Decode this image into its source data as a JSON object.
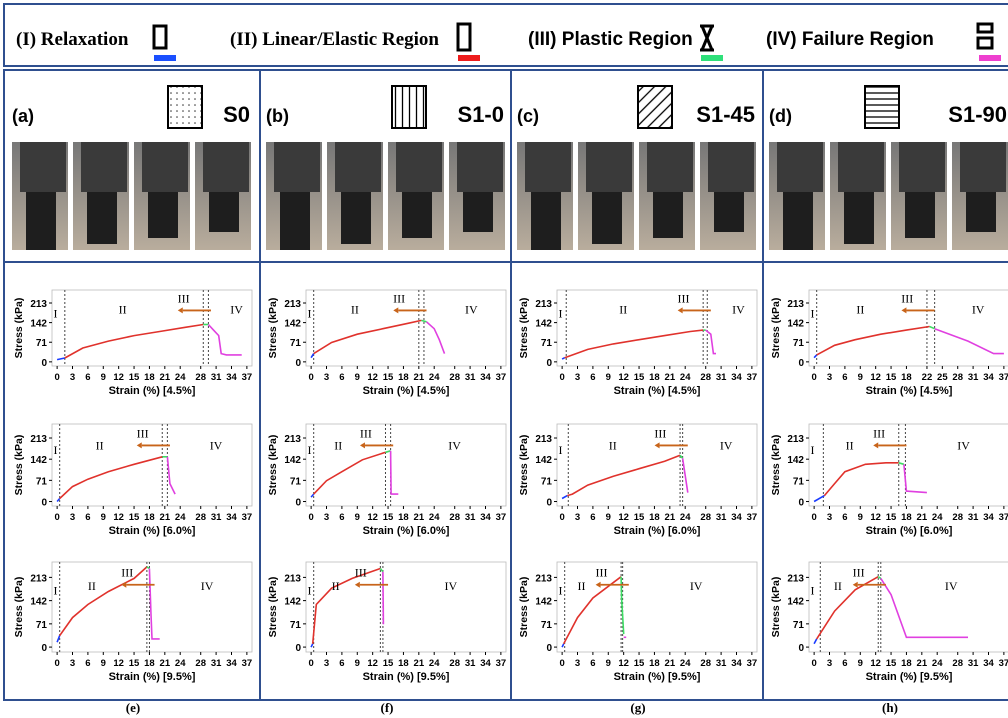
{
  "legend": [
    {
      "label": "(I) Relaxation",
      "color": "#1a4fff"
    },
    {
      "label": "(II) Linear/Elastic Region",
      "color": "#ee1c1c"
    },
    {
      "label": "(III) Plastic Region",
      "color": "#2ee07a"
    },
    {
      "label": "(IV) Failure Region",
      "color": "#ee3fcf"
    }
  ],
  "panels": [
    {
      "label": "(a)",
      "sample": "S0"
    },
    {
      "label": "(b)",
      "sample": "S1-0"
    },
    {
      "label": "(c)",
      "sample": "S1-45"
    },
    {
      "label": "(d)",
      "sample": "S1-90"
    }
  ],
  "captions": [
    "(e)",
    "(f)",
    "(g)",
    "(h)"
  ],
  "chart_data": [
    {
      "type": "line",
      "xlabel": "Strain (%) [4.5%]",
      "ylabel": "Stress (kPa)",
      "xlim": [
        -1,
        38
      ],
      "ylim": [
        -15,
        260
      ],
      "xticks": [
        0,
        3,
        6,
        9,
        12,
        15,
        18,
        21,
        24,
        28,
        31,
        34,
        37
      ],
      "yticks": [
        0,
        71,
        142,
        213
      ],
      "boundaries": [
        1.5,
        28.5,
        29.5
      ],
      "annotations": [
        "I",
        "II",
        "III",
        "IV"
      ],
      "series": [
        {
          "color": "#1a3cff",
          "x": [
            0,
            1.5
          ],
          "values": [
            8,
            14
          ]
        },
        {
          "color": "#e0322c",
          "x": [
            1.5,
            5,
            10,
            15,
            20,
            25,
            28.5
          ],
          "values": [
            14,
            50,
            75,
            95,
            110,
            125,
            135
          ]
        },
        {
          "color": "#3ddc64",
          "x": [
            28.5,
            29.5
          ],
          "values": [
            135,
            135
          ]
        },
        {
          "color": "#e040e0",
          "x": [
            29.5,
            30.5,
            31.5,
            32,
            33,
            36
          ],
          "values": [
            135,
            115,
            95,
            30,
            25,
            25
          ]
        }
      ]
    },
    {
      "type": "line",
      "xlabel": "Strain (%) [6.0%]",
      "ylabel": "Stress (kPa)",
      "xlim": [
        -1,
        38
      ],
      "ylim": [
        -15,
        260
      ],
      "xticks": [
        0,
        3,
        6,
        9,
        12,
        15,
        18,
        21,
        24,
        28,
        31,
        34,
        37
      ],
      "yticks": [
        0,
        71,
        142,
        213
      ],
      "boundaries": [
        0.5,
        20.5,
        21.5
      ],
      "annotations": [
        "I",
        "II",
        "III",
        "IV"
      ],
      "series": [
        {
          "color": "#1a3cff",
          "x": [
            0,
            0.5
          ],
          "values": [
            0,
            10
          ]
        },
        {
          "color": "#e0322c",
          "x": [
            0.5,
            3,
            6,
            10,
            15,
            20.5
          ],
          "values": [
            10,
            50,
            75,
            100,
            125,
            150
          ]
        },
        {
          "color": "#3ddc64",
          "x": [
            20.5,
            21.5
          ],
          "values": [
            150,
            150
          ]
        },
        {
          "color": "#e040e0",
          "x": [
            21.5,
            22,
            23
          ],
          "values": [
            150,
            60,
            25
          ]
        }
      ]
    },
    {
      "type": "line",
      "xlabel": "Strain (%) [9.5%]",
      "ylabel": "Stress (kPa)",
      "xlim": [
        -1,
        38
      ],
      "ylim": [
        -15,
        260
      ],
      "xticks": [
        0,
        3,
        6,
        9,
        12,
        15,
        18,
        21,
        24,
        28,
        31,
        34,
        37
      ],
      "yticks": [
        0,
        71,
        142,
        213
      ],
      "boundaries": [
        0.5,
        17.5,
        18
      ],
      "annotations": [
        "I",
        "II",
        "III",
        "IV"
      ],
      "series": [
        {
          "color": "#1a3cff",
          "x": [
            0,
            0.5
          ],
          "values": [
            15,
            35
          ]
        },
        {
          "color": "#e0322c",
          "x": [
            0.5,
            3,
            6,
            10,
            15,
            17.5
          ],
          "values": [
            35,
            90,
            130,
            170,
            210,
            245
          ]
        },
        {
          "color": "#3ddc64",
          "x": [
            17.5,
            18
          ],
          "values": [
            245,
            240
          ]
        },
        {
          "color": "#e040e0",
          "x": [
            18,
            18.3,
            18.5,
            20
          ],
          "values": [
            240,
            100,
            25,
            25
          ]
        }
      ]
    },
    {
      "type": "line",
      "xlabel": "Strain (%) [4.5%]",
      "ylabel": "Stress (kPa)",
      "xlim": [
        -1,
        38
      ],
      "ylim": [
        -15,
        260
      ],
      "xticks": [
        0,
        3,
        6,
        9,
        12,
        15,
        18,
        21,
        24,
        28,
        31,
        34,
        37
      ],
      "yticks": [
        0,
        71,
        142,
        213
      ],
      "boundaries": [
        0.5,
        21,
        22
      ],
      "annotations": [
        "I",
        "II",
        "III",
        "IV"
      ],
      "series": [
        {
          "color": "#1a3cff",
          "x": [
            0,
            0.5
          ],
          "values": [
            15,
            30
          ]
        },
        {
          "color": "#e0322c",
          "x": [
            0.5,
            4,
            9,
            14,
            19,
            21.5
          ],
          "values": [
            30,
            70,
            100,
            120,
            140,
            150
          ]
        },
        {
          "color": "#3ddc64",
          "x": [
            21.5,
            22.5
          ],
          "values": [
            150,
            145
          ]
        },
        {
          "color": "#e040e0",
          "x": [
            22.5,
            24,
            25,
            26
          ],
          "values": [
            145,
            120,
            80,
            30
          ]
        }
      ]
    },
    {
      "type": "line",
      "xlabel": "Strain (%) [6.0%]",
      "ylabel": "Stress (kPa)",
      "xlim": [
        -1,
        38
      ],
      "ylim": [
        -15,
        260
      ],
      "xticks": [
        0,
        3,
        6,
        9,
        12,
        15,
        18,
        21,
        24,
        28,
        31,
        34,
        37
      ],
      "yticks": [
        0,
        71,
        142,
        213
      ],
      "boundaries": [
        0.5,
        14.5,
        15.5
      ],
      "annotations": [
        "I",
        "II",
        "III",
        "IV"
      ],
      "series": [
        {
          "color": "#1a3cff",
          "x": [
            0,
            0.5
          ],
          "values": [
            15,
            25
          ]
        },
        {
          "color": "#e0322c",
          "x": [
            0.5,
            3,
            6,
            10,
            14.5
          ],
          "values": [
            25,
            70,
            100,
            140,
            165
          ]
        },
        {
          "color": "#3ddc64",
          "x": [
            14.5,
            15.5
          ],
          "values": [
            165,
            170
          ]
        },
        {
          "color": "#e040e0",
          "x": [
            15.5,
            15.6,
            17
          ],
          "values": [
            170,
            25,
            25
          ]
        }
      ]
    },
    {
      "type": "line",
      "xlabel": "Strain (%) [9.5%]",
      "ylabel": "Stress (kPa)",
      "xlim": [
        -1,
        38
      ],
      "ylim": [
        -15,
        260
      ],
      "xticks": [
        0,
        3,
        6,
        9,
        12,
        15,
        18,
        21,
        24,
        28,
        31,
        34,
        37
      ],
      "yticks": [
        0,
        71,
        142,
        213
      ],
      "boundaries": [
        0.5,
        13.5,
        14
      ],
      "annotations": [
        "I",
        "II",
        "III",
        "IV"
      ],
      "series": [
        {
          "color": "#1a3cff",
          "x": [
            0,
            0.3
          ],
          "values": [
            0,
            10
          ]
        },
        {
          "color": "#e0322c",
          "x": [
            0.3,
            1,
            4,
            8,
            13.5
          ],
          "values": [
            10,
            130,
            180,
            210,
            240
          ]
        },
        {
          "color": "#3ddc64",
          "x": [
            13.5,
            14
          ],
          "values": [
            240,
            230
          ]
        },
        {
          "color": "#e040e0",
          "x": [
            14,
            14.1
          ],
          "values": [
            230,
            70
          ]
        }
      ]
    },
    {
      "type": "line",
      "xlabel": "Strain (%) [4.5%]",
      "ylabel": "Stress (kPa)",
      "xlim": [
        -1,
        38
      ],
      "ylim": [
        -15,
        260
      ],
      "xticks": [
        0,
        3,
        6,
        9,
        12,
        15,
        18,
        21,
        24,
        28,
        31,
        34,
        37
      ],
      "yticks": [
        0,
        71,
        142,
        213
      ],
      "boundaries": [
        0.8,
        27.5,
        28.3
      ],
      "annotations": [
        "I",
        "II",
        "III",
        "IV"
      ],
      "series": [
        {
          "color": "#1a3cff",
          "x": [
            0,
            0.5
          ],
          "values": [
            10,
            15
          ]
        },
        {
          "color": "#e0322c",
          "x": [
            0.5,
            5,
            10,
            15,
            20,
            25,
            27.5
          ],
          "values": [
            15,
            45,
            65,
            80,
            95,
            110,
            115
          ]
        },
        {
          "color": "#3ddc64",
          "x": [
            27.5,
            28
          ],
          "values": [
            115,
            115
          ]
        },
        {
          "color": "#e040e0",
          "x": [
            28,
            29,
            29.5,
            30
          ],
          "values": [
            115,
            100,
            30,
            30
          ]
        }
      ]
    },
    {
      "type": "line",
      "xlabel": "Strain (%) [6.0%]",
      "ylabel": "Stress (kPa)",
      "xlim": [
        -1,
        38
      ],
      "ylim": [
        -15,
        260
      ],
      "xticks": [
        0,
        3,
        6,
        9,
        12,
        15,
        18,
        21,
        24,
        28,
        31,
        34,
        37
      ],
      "yticks": [
        0,
        71,
        142,
        213
      ],
      "boundaries": [
        1.2,
        23,
        23.5
      ],
      "annotations": [
        "I",
        "II",
        "III",
        "IV"
      ],
      "series": [
        {
          "color": "#1a3cff",
          "x": [
            0,
            1
          ],
          "values": [
            10,
            20
          ]
        },
        {
          "color": "#e0322c",
          "x": [
            1,
            2,
            5,
            10,
            15,
            20,
            23
          ],
          "values": [
            20,
            25,
            55,
            85,
            110,
            135,
            155
          ]
        },
        {
          "color": "#3ddc64",
          "x": [
            23,
            23.5
          ],
          "values": [
            155,
            145
          ]
        },
        {
          "color": "#e040e0",
          "x": [
            23.5,
            24.5
          ],
          "values": [
            145,
            30
          ]
        }
      ]
    },
    {
      "type": "line",
      "xlabel": "Strain (%) [9.5%]",
      "ylabel": "Stress (kPa)",
      "xlim": [
        -1,
        38
      ],
      "ylim": [
        -15,
        260
      ],
      "xticks": [
        0,
        3,
        6,
        9,
        12,
        15,
        18,
        21,
        24,
        28,
        31,
        34,
        37
      ],
      "yticks": [
        0,
        71,
        142,
        213
      ],
      "boundaries": [
        0.5,
        11.5,
        11.8
      ],
      "annotations": [
        "I",
        "II",
        "III",
        "IV"
      ],
      "series": [
        {
          "color": "#1a3cff",
          "x": [
            0,
            0.3
          ],
          "values": [
            0,
            10
          ]
        },
        {
          "color": "#e0322c",
          "x": [
            0.3,
            3,
            6,
            11.5
          ],
          "values": [
            10,
            90,
            150,
            215
          ]
        },
        {
          "color": "#3ddc64",
          "x": [
            11.5,
            11.6,
            12
          ],
          "values": [
            215,
            150,
            40
          ]
        },
        {
          "color": "#e040e0",
          "x": [
            12,
            12.5
          ],
          "values": [
            30,
            30
          ]
        }
      ]
    },
    {
      "type": "line",
      "xlabel": "Strain (%) [4.5%]",
      "ylabel": "Stress (kPa)",
      "xlim": [
        -1,
        38
      ],
      "ylim": [
        -15,
        260
      ],
      "xticks": [
        0,
        3,
        6,
        9,
        12,
        15,
        18,
        22,
        25,
        28,
        31,
        34,
        37
      ],
      "yticks": [
        0,
        71,
        142,
        213
      ],
      "boundaries": [
        0.5,
        22,
        23.5
      ],
      "annotations": [
        "I",
        "II",
        "III",
        "IV"
      ],
      "series": [
        {
          "color": "#1a3cff",
          "x": [
            0,
            0.5
          ],
          "values": [
            15,
            25
          ]
        },
        {
          "color": "#e0322c",
          "x": [
            0.5,
            4,
            8,
            13,
            18,
            22.5
          ],
          "values": [
            25,
            60,
            80,
            100,
            115,
            128
          ]
        },
        {
          "color": "#3ddc64",
          "x": [
            22.5,
            23.5
          ],
          "values": [
            128,
            120
          ]
        },
        {
          "color": "#e040e0",
          "x": [
            23.5,
            30,
            35,
            37
          ],
          "values": [
            120,
            75,
            30,
            30
          ]
        }
      ]
    },
    {
      "type": "line",
      "xlabel": "Strain (%) [6.0%]",
      "ylabel": "Stress (kPa)",
      "xlim": [
        -1,
        38
      ],
      "ylim": [
        -15,
        260
      ],
      "xticks": [
        0,
        3,
        6,
        9,
        12,
        15,
        18,
        21,
        24,
        28,
        31,
        34,
        37
      ],
      "yticks": [
        0,
        71,
        142,
        213
      ],
      "boundaries": [
        1.8,
        16.5,
        17.8
      ],
      "annotations": [
        "I",
        "II",
        "III",
        "IV"
      ],
      "series": [
        {
          "color": "#1a3cff",
          "x": [
            0,
            2
          ],
          "values": [
            0,
            20
          ]
        },
        {
          "color": "#e0322c",
          "x": [
            2,
            4,
            6,
            10,
            14,
            16.5
          ],
          "values": [
            20,
            60,
            100,
            125,
            130,
            130
          ]
        },
        {
          "color": "#3ddc64",
          "x": [
            16.5,
            17.5
          ],
          "values": [
            130,
            125
          ]
        },
        {
          "color": "#e040e0",
          "x": [
            17.5,
            18,
            22
          ],
          "values": [
            125,
            35,
            30
          ]
        }
      ]
    },
    {
      "type": "line",
      "xlabel": "Strain (%) [9.5%]",
      "ylabel": "Stress (kPa)",
      "xlim": [
        -1,
        38
      ],
      "ylim": [
        -15,
        260
      ],
      "xticks": [
        0,
        3,
        6,
        9,
        12,
        15,
        18,
        21,
        24,
        28,
        31,
        34,
        37
      ],
      "yticks": [
        0,
        71,
        142,
        213
      ],
      "boundaries": [
        1.2,
        12.5,
        13
      ],
      "annotations": [
        "I",
        "II",
        "III",
        "IV"
      ],
      "series": [
        {
          "color": "#1a3cff",
          "x": [
            0,
            0.5
          ],
          "values": [
            10,
            25
          ]
        },
        {
          "color": "#e0322c",
          "x": [
            0.5,
            4,
            8,
            12.5
          ],
          "values": [
            25,
            110,
            175,
            215
          ]
        },
        {
          "color": "#3ddc64",
          "x": [
            12.5,
            13
          ],
          "values": [
            215,
            210
          ]
        },
        {
          "color": "#e040e0",
          "x": [
            13,
            15,
            18,
            25,
            30
          ],
          "values": [
            210,
            160,
            30,
            30,
            30
          ]
        }
      ]
    }
  ]
}
